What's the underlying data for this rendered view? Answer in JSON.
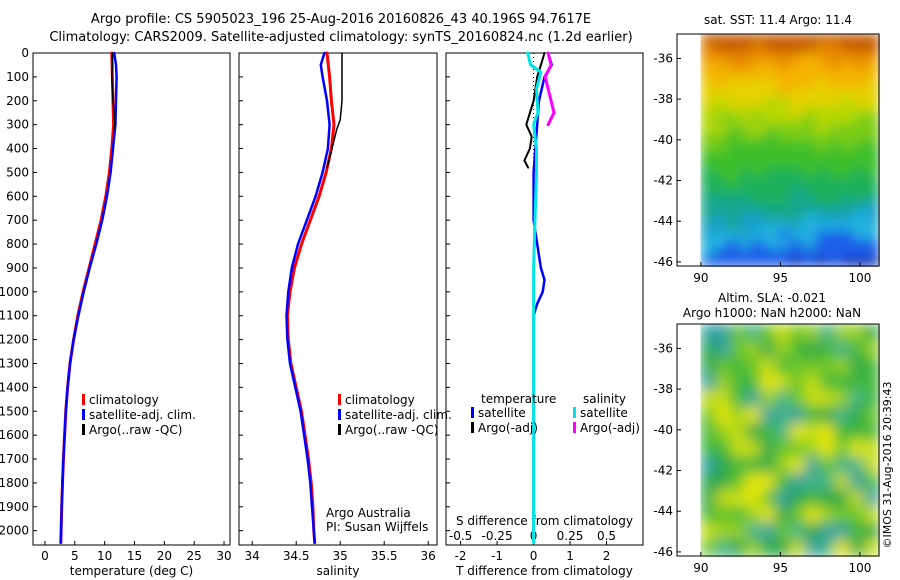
{
  "header": {
    "line1": "Argo profile: CS 5905023_196 25-Aug-2016 20160826_43 40.196S 94.7617E",
    "line2": "Climatology: CARS2009. Satellite-adjusted climatology: synTS_20160824.nc (1.2d earlier)"
  },
  "colors": {
    "climatology": "#ff0000",
    "satellite": "#0000ff",
    "argo": "#000000",
    "s_satellite": "#00e5e5",
    "s_argo": "#ff00ff",
    "zero_line": "#000000"
  },
  "credit": "©IMOS 31-Aug-2016 20:39:43",
  "chart_data": [
    {
      "type": "line",
      "id": "temperature",
      "xlabel": "temperature (deg C)",
      "xlim": [
        -2,
        31
      ],
      "ylim": [
        2060,
        0
      ],
      "x_ticks": [
        0,
        5,
        10,
        15,
        20,
        25,
        30
      ],
      "y_ticks": [
        0,
        100,
        200,
        300,
        400,
        500,
        600,
        700,
        800,
        900,
        1000,
        1100,
        1200,
        1300,
        1400,
        1500,
        1600,
        1700,
        1800,
        1900,
        2000
      ],
      "legend": [
        "climatology",
        "satellite-adj. clim.",
        "Argo(..raw -QC)"
      ],
      "series": [
        {
          "name": "climatology",
          "color": "#ff0000",
          "points": [
            [
              11.2,
              0
            ],
            [
              11.3,
              100
            ],
            [
              11.4,
              200
            ],
            [
              11.5,
              300
            ],
            [
              11.2,
              400
            ],
            [
              10.8,
              500
            ],
            [
              10.2,
              600
            ],
            [
              9.4,
              700
            ],
            [
              8.4,
              800
            ],
            [
              7.4,
              900
            ],
            [
              6.4,
              1000
            ],
            [
              5.5,
              1100
            ],
            [
              4.8,
              1200
            ],
            [
              4.2,
              1300
            ],
            [
              3.8,
              1400
            ],
            [
              3.5,
              1500
            ],
            [
              3.3,
              1600
            ],
            [
              3.1,
              1700
            ],
            [
              2.95,
              1800
            ],
            [
              2.8,
              1900
            ],
            [
              2.7,
              2000
            ],
            [
              2.65,
              2050
            ]
          ]
        },
        {
          "name": "satellite-adj. clim.",
          "color": "#0000ff",
          "points": [
            [
              11.6,
              0
            ],
            [
              11.9,
              50
            ],
            [
              12.0,
              100
            ],
            [
              11.9,
              200
            ],
            [
              11.8,
              300
            ],
            [
              11.4,
              400
            ],
            [
              11.0,
              500
            ],
            [
              10.4,
              600
            ],
            [
              9.6,
              700
            ],
            [
              8.6,
              800
            ],
            [
              7.5,
              900
            ],
            [
              6.5,
              1000
            ],
            [
              5.6,
              1100
            ],
            [
              4.8,
              1200
            ],
            [
              4.2,
              1300
            ],
            [
              3.8,
              1400
            ],
            [
              3.5,
              1500
            ],
            [
              3.3,
              1600
            ],
            [
              3.1,
              1700
            ],
            [
              2.95,
              1800
            ],
            [
              2.8,
              1900
            ],
            [
              2.7,
              2000
            ],
            [
              2.65,
              2050
            ]
          ]
        },
        {
          "name": "Argo(..raw -QC)",
          "color": "#000000",
          "points": [
            [
              11.3,
              0
            ],
            [
              11.3,
              50
            ],
            [
              11.2,
              100
            ],
            [
              11.3,
              150
            ],
            [
              11.4,
              200
            ],
            [
              11.6,
              250
            ],
            [
              11.7,
              300
            ],
            [
              11.6,
              320
            ]
          ]
        }
      ]
    },
    {
      "type": "line",
      "id": "salinity",
      "xlabel": "salinity",
      "xlim": [
        33.85,
        36.1
      ],
      "ylim": [
        2060,
        0
      ],
      "x_ticks": [
        34,
        34.5,
        35,
        35.5,
        36
      ],
      "legend": [
        "climatology",
        "satellite-adj. clim.",
        "Argo(..raw -QC)"
      ],
      "annotation": [
        "Argo Australia",
        "PI: Susan Wijffels"
      ],
      "series": [
        {
          "name": "climatology",
          "color": "#ff0000",
          "points": [
            [
              34.85,
              0
            ],
            [
              34.88,
              100
            ],
            [
              34.9,
              200
            ],
            [
              34.93,
              300
            ],
            [
              34.9,
              400
            ],
            [
              34.84,
              500
            ],
            [
              34.76,
              600
            ],
            [
              34.66,
              700
            ],
            [
              34.56,
              800
            ],
            [
              34.48,
              900
            ],
            [
              34.43,
              1000
            ],
            [
              34.4,
              1100
            ],
            [
              34.41,
              1200
            ],
            [
              34.44,
              1300
            ],
            [
              34.5,
              1400
            ],
            [
              34.56,
              1500
            ],
            [
              34.6,
              1600
            ],
            [
              34.64,
              1700
            ],
            [
              34.67,
              1800
            ],
            [
              34.69,
              1900
            ],
            [
              34.7,
              2000
            ],
            [
              34.71,
              2050
            ]
          ]
        },
        {
          "name": "satellite-adj. clim.",
          "color": "#0000ff",
          "points": [
            [
              34.82,
              0
            ],
            [
              34.78,
              50
            ],
            [
              34.8,
              100
            ],
            [
              34.85,
              200
            ],
            [
              34.88,
              300
            ],
            [
              34.86,
              400
            ],
            [
              34.8,
              500
            ],
            [
              34.72,
              600
            ],
            [
              34.62,
              700
            ],
            [
              34.52,
              800
            ],
            [
              34.45,
              900
            ],
            [
              34.41,
              1000
            ],
            [
              34.39,
              1100
            ],
            [
              34.4,
              1200
            ],
            [
              34.43,
              1300
            ],
            [
              34.49,
              1400
            ],
            [
              34.55,
              1500
            ],
            [
              34.59,
              1600
            ],
            [
              34.63,
              1700
            ],
            [
              34.66,
              1800
            ],
            [
              34.68,
              1900
            ],
            [
              34.7,
              2000
            ],
            [
              34.71,
              2050
            ]
          ]
        },
        {
          "name": "Argo(..raw -QC)",
          "color": "#000000",
          "points": [
            [
              35.02,
              0
            ],
            [
              35.02,
              100
            ],
            [
              35.02,
              200
            ],
            [
              35.0,
              280
            ],
            [
              34.96,
              320
            ],
            [
              34.92,
              380
            ],
            [
              34.88,
              440
            ],
            [
              34.85,
              480
            ]
          ]
        }
      ]
    },
    {
      "type": "line",
      "id": "differences",
      "xlabel": "T difference from climatology",
      "x2label": "S difference from climatology",
      "xlim": [
        -2.4,
        3.0
      ],
      "x2lim": [
        -0.6,
        0.75
      ],
      "ylim": [
        2060,
        0
      ],
      "x_ticks": [
        -2,
        -1,
        0,
        1,
        2
      ],
      "x2_ticks": [
        -0.5,
        -0.25,
        0,
        0.25,
        0.5
      ],
      "legend_headers": [
        "temperature",
        "salinity"
      ],
      "legend": [
        "satellite",
        "Argo(-adj)",
        "satellite",
        "Argo(-adj)"
      ],
      "series": [
        {
          "name": "satellite",
          "group": "temperature",
          "axis": "T",
          "color": "#0000ff",
          "points": [
            [
              0.4,
              0
            ],
            [
              0.5,
              50
            ],
            [
              0.3,
              100
            ],
            [
              0.15,
              200
            ],
            [
              0.1,
              300
            ],
            [
              0.05,
              400
            ],
            [
              0.0,
              500
            ],
            [
              0.0,
              600
            ],
            [
              0.0,
              700
            ],
            [
              0.1,
              800
            ],
            [
              0.2,
              900
            ],
            [
              0.3,
              950
            ],
            [
              0.25,
              1000
            ],
            [
              0.1,
              1050
            ],
            [
              0.0,
              1100
            ],
            [
              0.0,
              1200
            ],
            [
              0.0,
              1300
            ],
            [
              0.0,
              1500
            ],
            [
              0.0,
              1700
            ],
            [
              0.0,
              1900
            ],
            [
              0.0,
              2050
            ]
          ]
        },
        {
          "name": "Argo(-adj)",
          "group": "temperature",
          "axis": "T",
          "color": "#000000",
          "points": [
            [
              0.3,
              0
            ],
            [
              0.2,
              50
            ],
            [
              0.1,
              100
            ],
            [
              0.0,
              200
            ],
            [
              -0.2,
              300
            ],
            [
              -0.05,
              350
            ],
            [
              -0.1,
              400
            ],
            [
              -0.25,
              450
            ],
            [
              -0.15,
              480
            ]
          ]
        },
        {
          "name": "satellite",
          "group": "salinity",
          "axis": "S",
          "color": "#00e5e5",
          "points": [
            [
              -0.04,
              0
            ],
            [
              -0.02,
              50
            ],
            [
              0.05,
              80
            ],
            [
              0.02,
              150
            ],
            [
              0.03,
              250
            ],
            [
              0.0,
              300
            ],
            [
              0.02,
              400
            ],
            [
              0.02,
              500
            ],
            [
              0.01,
              700
            ],
            [
              0.0,
              900
            ],
            [
              0.0,
              1100
            ],
            [
              0.0,
              1500
            ],
            [
              0.0,
              1900
            ],
            [
              0.0,
              2050
            ]
          ]
        },
        {
          "name": "Argo(-adj)",
          "group": "salinity",
          "axis": "S",
          "color": "#ff00ff",
          "points": [
            [
              0.1,
              0
            ],
            [
              0.12,
              50
            ],
            [
              0.08,
              100
            ],
            [
              0.1,
              150
            ],
            [
              0.12,
              200
            ],
            [
              0.14,
              250
            ],
            [
              0.1,
              300
            ]
          ]
        }
      ]
    },
    {
      "type": "heatmap",
      "id": "sst_map",
      "title": "sat. SST: 11.4 Argo: 11.4",
      "xlim": [
        88.5,
        101.2
      ],
      "ylim": [
        -46.2,
        -34.8
      ],
      "x_ticks": [
        90,
        95,
        100
      ],
      "y_ticks": [
        -36,
        -38,
        -40,
        -42,
        -44,
        -46
      ],
      "data_extent": {
        "lon": [
          90,
          101.2
        ],
        "lat": [
          -46.2,
          -34.8
        ]
      },
      "marker": {
        "lon": 94.76,
        "lat": -40.2
      }
    },
    {
      "type": "heatmap",
      "id": "sla_map",
      "title": "Altim. SLA: -0.021",
      "subtitle": "Argo h1000: NaN h2000: NaN",
      "xlim": [
        88.5,
        101.2
      ],
      "ylim": [
        -46.2,
        -34.8
      ],
      "x_ticks": [
        90,
        95,
        100
      ],
      "y_ticks": [
        -36,
        -38,
        -40,
        -42,
        -44,
        -46
      ],
      "data_extent": {
        "lon": [
          90,
          101.2
        ],
        "lat": [
          -46.2,
          -34.8
        ]
      }
    }
  ]
}
